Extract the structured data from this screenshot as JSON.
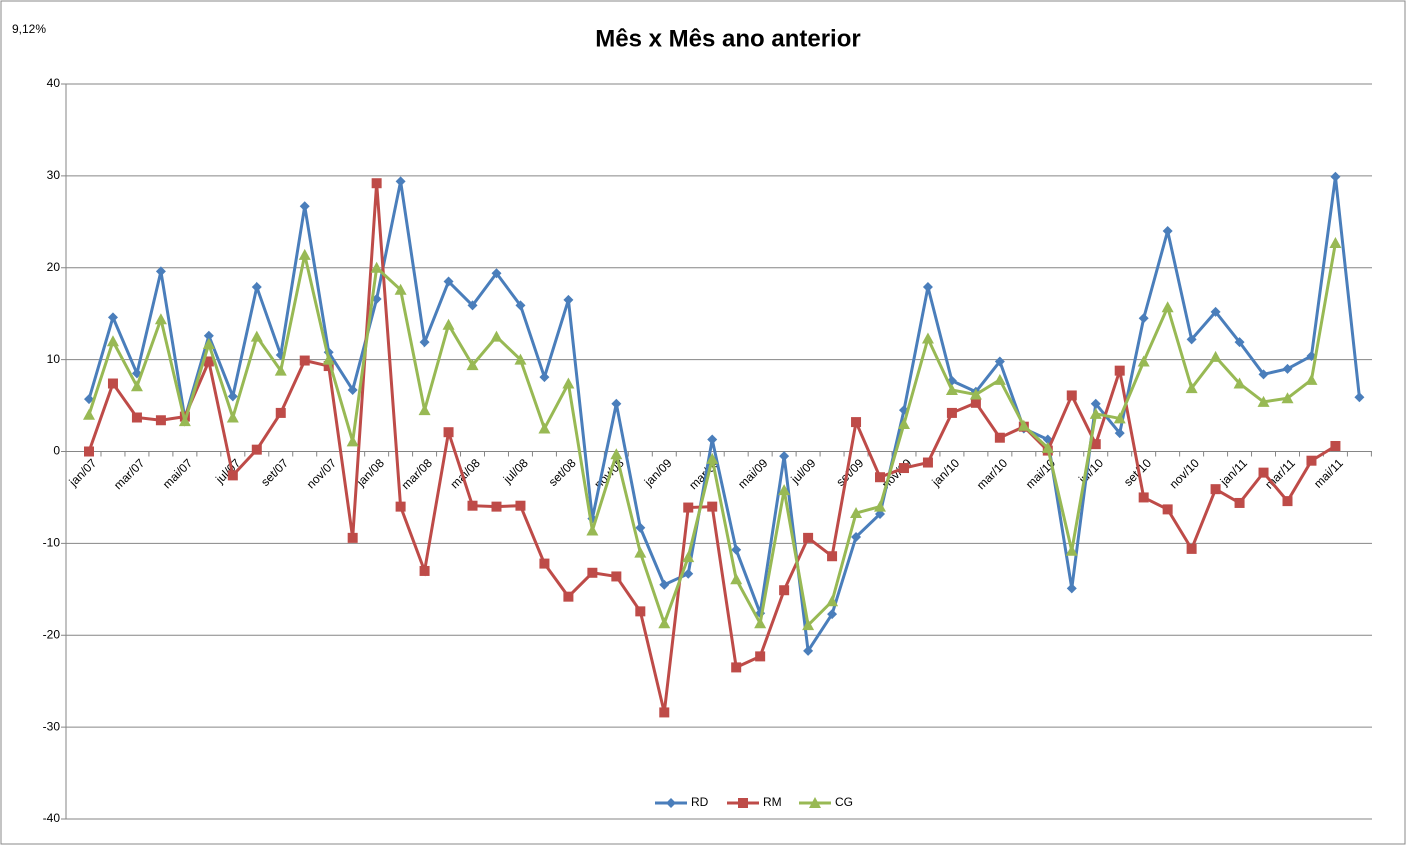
{
  "chart_data": {
    "type": "line",
    "title": "Mês x Mês ano anterior",
    "annotation": "9,12%",
    "categories": [
      "jan/07",
      null,
      "mar/07",
      null,
      "mai/07",
      null,
      "jul/07",
      null,
      "set/07",
      null,
      "nov/07",
      null,
      "jan/08",
      null,
      "mar/08",
      null,
      "mai/08",
      null,
      "jul/08",
      null,
      "set/08",
      null,
      "nov/08",
      null,
      "jan/09",
      null,
      "mar/09",
      null,
      "mai/09",
      null,
      "jul/09",
      null,
      "set/09",
      null,
      "nov/09",
      null,
      "jan/10",
      null,
      "mar/10",
      null,
      "mai/10",
      null,
      "jul/10",
      null,
      "set/10",
      null,
      "nov/10",
      null,
      "jan/11",
      null,
      "mar/11",
      null,
      "mai/11",
      null
    ],
    "series": [
      {
        "name": "RD",
        "color": "#4a7ebb",
        "marker": "diamond",
        "values": [
          5.7,
          14.6,
          8.5,
          19.6,
          3.6,
          12.6,
          6.0,
          17.9,
          10.5,
          26.7,
          10.8,
          6.7,
          16.6,
          29.4,
          11.9,
          18.5,
          15.9,
          19.4,
          15.9,
          8.1,
          16.5,
          -7.3,
          5.2,
          -8.3,
          -14.5,
          -13.3,
          1.3,
          -10.7,
          -17.6,
          -0.5,
          -21.7,
          -17.7,
          -9.3,
          -6.8,
          4.5,
          17.9,
          7.7,
          6.5,
          9.8,
          2.5,
          1.3,
          -14.9,
          5.2,
          2.0,
          14.5,
          24.0,
          12.2,
          15.2,
          11.9,
          8.4,
          9.0,
          10.4,
          29.9,
          5.9
        ]
      },
      {
        "name": "RM",
        "color": "#be4b48",
        "marker": "square",
        "values": [
          0,
          7.4,
          3.7,
          3.4,
          3.8,
          9.8,
          -2.6,
          0.2,
          4.2,
          9.9,
          9.3,
          -9.4,
          29.2,
          -6.0,
          -13.0,
          2.1,
          -5.9,
          -6.0,
          -5.9,
          -12.2,
          -15.8,
          -13.2,
          -13.6,
          -17.4,
          -28.4,
          -6.1,
          -6.0,
          -23.5,
          -22.3,
          -15.1,
          -9.4,
          -11.4,
          3.2,
          -2.8,
          -1.8,
          -1.2,
          4.2,
          5.3,
          1.5,
          2.7,
          0.1,
          6.1,
          0.8,
          8.8,
          -5.0,
          -6.3,
          -10.6,
          -4.1,
          -5.6,
          -2.3,
          -5.4,
          -1.0,
          0.6,
          null
        ]
      },
      {
        "name": "CG",
        "color": "#98b954",
        "marker": "triangle",
        "values": [
          4.0,
          12.0,
          7.1,
          14.4,
          3.3,
          11.7,
          3.7,
          12.5,
          8.8,
          21.4,
          10.0,
          1.1,
          20.0,
          17.6,
          4.5,
          13.8,
          9.4,
          12.5,
          10.0,
          2.5,
          7.4,
          -8.6,
          -0.3,
          -11.0,
          -18.7,
          -11.5,
          -0.8,
          -13.9,
          -18.7,
          -4.2,
          -18.9,
          -16.3,
          -6.7,
          -6.0,
          3.0,
          12.3,
          6.7,
          6.2,
          7.8,
          2.8,
          0.4,
          -10.8,
          4.1,
          3.6,
          9.8,
          15.7,
          6.9,
          10.3,
          7.4,
          5.4,
          5.8,
          7.8,
          22.7,
          null
        ]
      }
    ],
    "ylim": [
      -40,
      40
    ],
    "yticks": [
      -40,
      -30,
      -20,
      -10,
      0,
      10,
      20,
      30,
      40
    ],
    "grid": true,
    "legend": "bottom"
  }
}
